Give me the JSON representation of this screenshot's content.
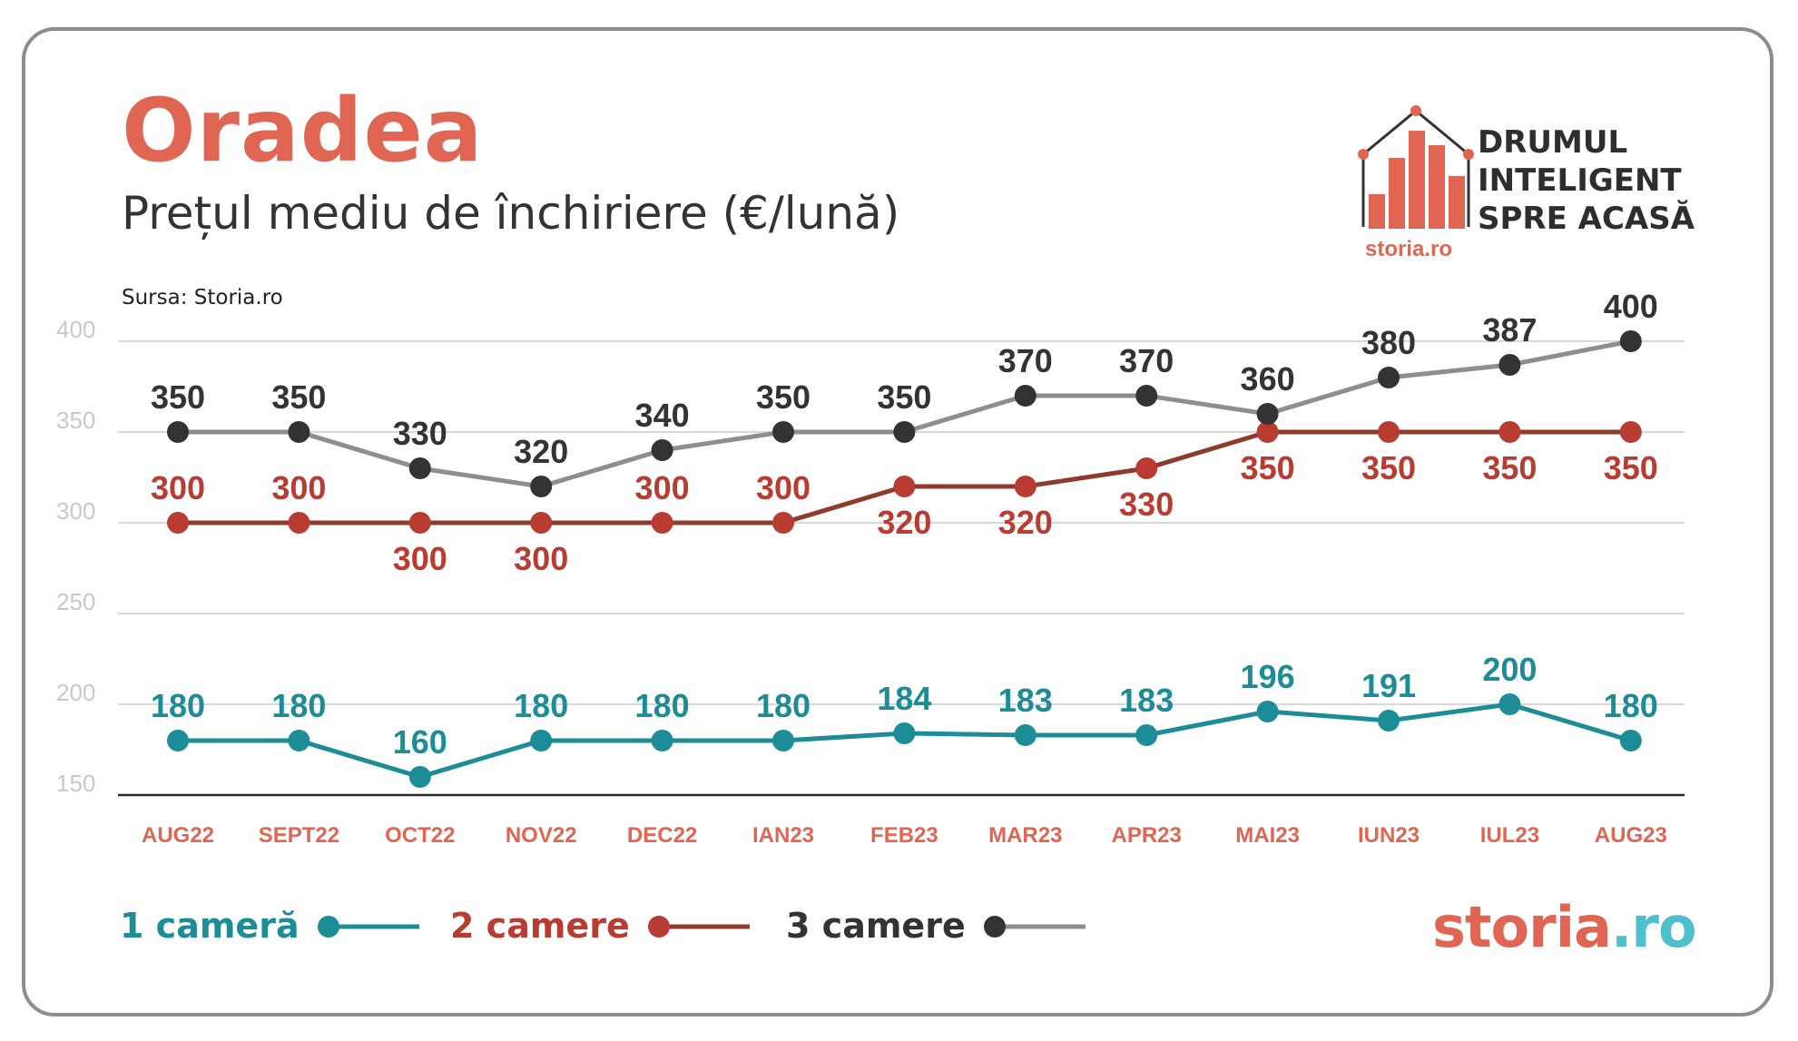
{
  "header": {
    "city": "Oradea",
    "subtitle": "Prețul mediu de închiriere (€/lună)",
    "source": "Sursa:  Storia.ro"
  },
  "logo": {
    "line1": "DRUMUL",
    "line2": "INTELIGENT",
    "line3": "SPRE ACASĂ",
    "small_brand": "storia.ro"
  },
  "brand": {
    "part1": "storia",
    "part2": ".ro"
  },
  "colors": {
    "accent": "#e06552",
    "teal": "#1c8c97",
    "red": "#b83c31",
    "dark": "#333333",
    "gray_line": "#918c92",
    "grid": "#d9d9d9",
    "month_label": "#e06552",
    "brand_teal": "#4dbfcd"
  },
  "chart_data": {
    "type": "line",
    "categories": [
      "AUG22",
      "SEPT22",
      "OCT22",
      "NOV22",
      "DEC22",
      "IAN23",
      "FEB23",
      "MAR23",
      "APR23",
      "MAI23",
      "IUN23",
      "IUL23",
      "AUG23"
    ],
    "ylim": [
      150,
      400
    ],
    "yticks": [
      400,
      350,
      300,
      250,
      200,
      150
    ],
    "grid": true,
    "legend_position": "bottom-left",
    "series": [
      {
        "name": "1 cameră",
        "values": [
          180,
          180,
          160,
          180,
          180,
          180,
          184,
          183,
          183,
          196,
          191,
          200,
          180
        ]
      },
      {
        "name": "2 camere",
        "values": [
          300,
          300,
          300,
          300,
          300,
          300,
          320,
          320,
          330,
          350,
          350,
          350,
          350
        ]
      },
      {
        "name": "3 camere",
        "values": [
          350,
          350,
          330,
          320,
          340,
          350,
          350,
          370,
          370,
          360,
          380,
          387,
          400
        ]
      }
    ]
  }
}
